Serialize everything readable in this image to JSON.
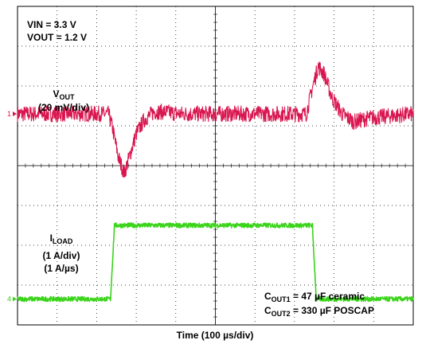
{
  "chart_data": {
    "type": "line",
    "xlabel": "Time (100 µs/div)",
    "x_divisions": 10,
    "y_divisions": 8,
    "annotations": {
      "vin": "VIN = 3.3 V",
      "vout": "VOUT = 1.2 V",
      "vout_trace_main": "V",
      "vout_trace_sub": "OUT",
      "vout_scale": "(20 mV/div)",
      "iload_main": "I",
      "iload_sub": "LOAD",
      "iload_scale": "(1 A/div)",
      "iload_slew": "(1 A/µs)",
      "cout1_main": "C",
      "cout1_sub": "OUT1",
      "cout1_rest": " = 47 µF ceramic",
      "cout2_main": "C",
      "cout2_sub": "OUT2",
      "cout2_rest": " = 330 µF POSCAP"
    },
    "series": [
      {
        "marker": "1",
        "color": "#d9164f",
        "x_div": [
          0,
          2.3,
          2.4,
          2.55,
          2.7,
          2.85,
          3.0,
          3.2,
          3.45,
          3.75,
          4.1,
          7.3,
          7.45,
          7.6,
          7.75,
          7.95,
          8.2,
          8.5,
          8.9,
          10
        ],
        "y_div": [
          5.3,
          5.3,
          4.95,
          4.2,
          3.8,
          4.3,
          4.8,
          5.15,
          5.35,
          5.35,
          5.3,
          5.3,
          5.95,
          6.5,
          6.3,
          5.7,
          5.3,
          5.1,
          5.2,
          5.3
        ],
        "noise_div": 0.2
      },
      {
        "marker": "4",
        "color": "#3bd41b",
        "x_div": [
          0,
          2.35,
          2.45,
          7.45,
          7.55,
          10
        ],
        "y_div": [
          0.65,
          0.65,
          2.5,
          2.5,
          0.65,
          0.65
        ],
        "noise_div": 0.06
      }
    ]
  }
}
